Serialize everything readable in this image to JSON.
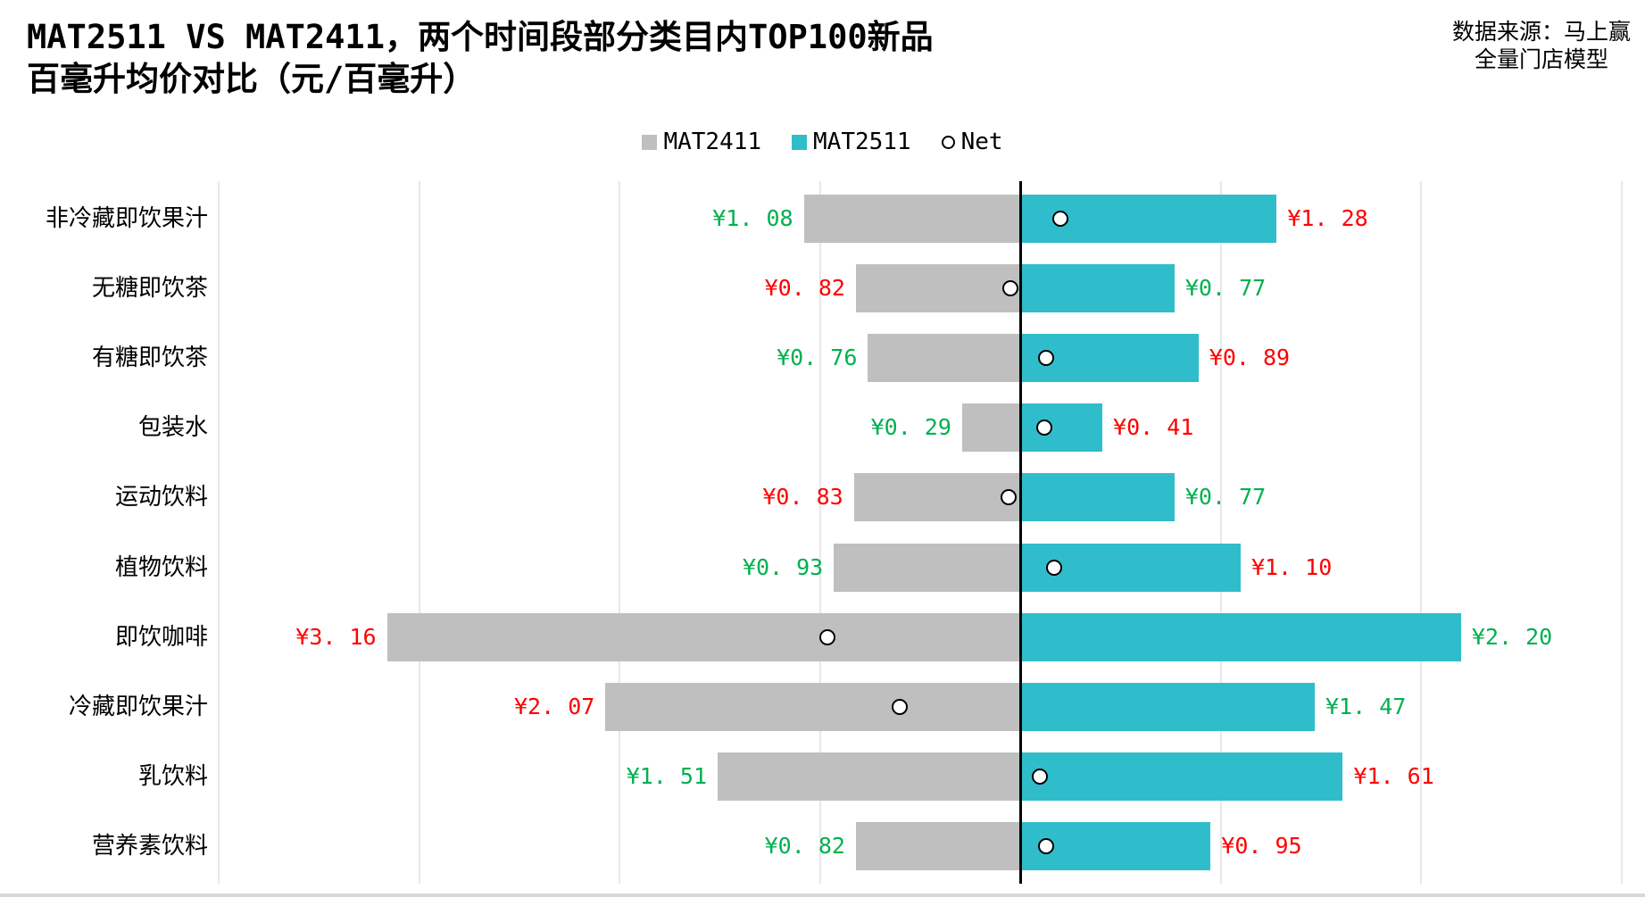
{
  "header": {
    "source_line1": "数据来源：马上赢",
    "source_line2": "全量门店模型"
  },
  "chart_data": {
    "type": "bar",
    "variant": "diverging-horizontal",
    "title_line1": "MAT2511 VS MAT2411，两个时间段部分类目内TOP100新品",
    "title_line2": "百毫升均价对比（元/百毫升）",
    "unit": "元/百毫升",
    "categories": [
      "非冷藏即饮果汁",
      "无糖即饮茶",
      "有糖即饮茶",
      "包装水",
      "运动饮料",
      "植物饮料",
      "即饮咖啡",
      "冷藏即饮果汁",
      "乳饮料",
      "营养素饮料"
    ],
    "series": [
      {
        "name": "MAT2411",
        "side": "left",
        "color": "#BFBFBF",
        "values": [
          1.08,
          0.82,
          0.76,
          0.29,
          0.83,
          0.93,
          3.16,
          2.07,
          1.51,
          0.82
        ]
      },
      {
        "name": "MAT2511",
        "side": "right",
        "color": "#2FBDCB",
        "values": [
          1.28,
          0.77,
          0.89,
          0.41,
          0.77,
          1.1,
          2.2,
          1.47,
          1.61,
          0.95
        ]
      },
      {
        "name": "Net",
        "type": "scatter",
        "marker": "open-circle",
        "marker_fill": "#FFFFFF",
        "marker_stroke": "#000000",
        "values": [
          0.2,
          -0.05,
          0.13,
          0.12,
          -0.06,
          0.17,
          -0.96,
          -0.6,
          0.1,
          0.13
        ]
      }
    ],
    "value_prefix": "¥",
    "label_color_higher": "#FF0000",
    "label_color_lower": "#00B050",
    "axis": {
      "center_value": 0,
      "xlim": [
        -4,
        3.12
      ],
      "gridline_step": 1,
      "grid": true,
      "legend_position": "top-center"
    }
  }
}
